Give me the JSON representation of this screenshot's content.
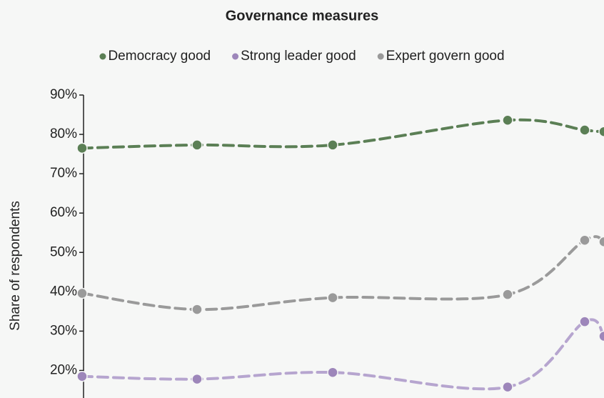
{
  "chart_data": {
    "type": "line",
    "title": "Governance measures",
    "y_label": "Share of respondents",
    "categories": [
      null,
      null,
      null,
      null,
      null,
      null
    ],
    "series": [
      {
        "name": "Democracy good",
        "color": "#5b7f55",
        "values": [
          76.5,
          77.3,
          77.3,
          83.6,
          81.1,
          80.7
        ]
      },
      {
        "name": "Strong leader good",
        "color": "#9d86ba",
        "values": [
          18.5,
          17.8,
          19.5,
          15.8,
          32.4,
          28.7
        ]
      },
      {
        "name": "Expert govern good",
        "color": "#9a9a9a",
        "values": [
          39.6,
          35.5,
          38.5,
          39.3,
          53.1,
          52.7
        ]
      }
    ],
    "ylim": [
      13,
      90
    ],
    "yticks": [
      {
        "value": 20,
        "label": "20%"
      },
      {
        "value": 30,
        "label": "30%"
      },
      {
        "value": 40,
        "label": "40%"
      },
      {
        "value": 50,
        "label": "50%"
      },
      {
        "value": 60,
        "label": "60%"
      },
      {
        "value": 70,
        "label": "70%"
      },
      {
        "value": 80,
        "label": "80%"
      },
      {
        "value": 90,
        "label": "90%"
      }
    ],
    "legend": "top"
  }
}
